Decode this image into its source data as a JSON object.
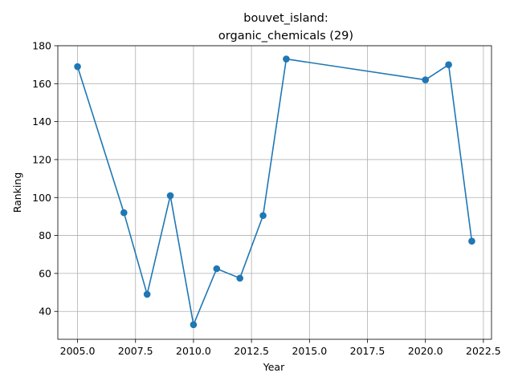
{
  "chart_data": {
    "type": "line",
    "title_lines": [
      "bouvet_island:",
      "organic_chemicals (29)"
    ],
    "xlabel": "Year",
    "ylabel": "Ranking",
    "xlim": [
      2004.15,
      2022.85
    ],
    "ylim": [
      25.3,
      180
    ],
    "x_ticks": [
      2005.0,
      2007.5,
      2010.0,
      2012.5,
      2015.0,
      2017.5,
      2020.0,
      2022.5
    ],
    "x_tick_labels": [
      "2005.0",
      "2007.5",
      "2010.0",
      "2012.5",
      "2015.0",
      "2017.5",
      "2020.0",
      "2022.5"
    ],
    "y_ticks": [
      40,
      60,
      80,
      100,
      120,
      140,
      160,
      180
    ],
    "y_tick_labels": [
      "40",
      "60",
      "80",
      "100",
      "120",
      "140",
      "160",
      "180"
    ],
    "grid": true,
    "series": [
      {
        "color": "#1f77b4",
        "x": [
          2005,
          2007,
          2008,
          2009,
          2010,
          2011,
          2012,
          2013,
          2014,
          2020,
          2021,
          2022
        ],
        "y": [
          169,
          92,
          49,
          101,
          33,
          62.5,
          57.5,
          90.5,
          173,
          162,
          170,
          77
        ]
      }
    ]
  }
}
